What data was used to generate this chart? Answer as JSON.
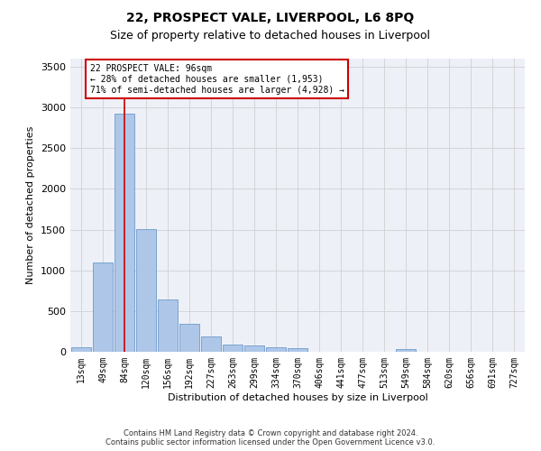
{
  "title": "22, PROSPECT VALE, LIVERPOOL, L6 8PQ",
  "subtitle": "Size of property relative to detached houses in Liverpool",
  "xlabel": "Distribution of detached houses by size in Liverpool",
  "ylabel": "Number of detached properties",
  "footer_line1": "Contains HM Land Registry data © Crown copyright and database right 2024.",
  "footer_line2": "Contains public sector information licensed under the Open Government Licence v3.0.",
  "categories": [
    "13sqm",
    "49sqm",
    "84sqm",
    "120sqm",
    "156sqm",
    "192sqm",
    "227sqm",
    "263sqm",
    "299sqm",
    "334sqm",
    "370sqm",
    "406sqm",
    "441sqm",
    "477sqm",
    "513sqm",
    "549sqm",
    "584sqm",
    "620sqm",
    "656sqm",
    "691sqm",
    "727sqm"
  ],
  "bar_values": [
    50,
    1100,
    2920,
    1510,
    640,
    345,
    190,
    90,
    80,
    55,
    40,
    0,
    0,
    0,
    0,
    30,
    0,
    0,
    0,
    0,
    0
  ],
  "bar_color": "#aec6e8",
  "bar_edge_color": "#5a8fc0",
  "ylim": [
    0,
    3600
  ],
  "yticks": [
    0,
    500,
    1000,
    1500,
    2000,
    2500,
    3000,
    3500
  ],
  "vline_x_index": 2,
  "vline_color": "#cc0000",
  "annotation_text": "22 PROSPECT VALE: 96sqm\n← 28% of detached houses are smaller (1,953)\n71% of semi-detached houses are larger (4,928) →",
  "annotation_box_color": "#cc0000",
  "grid_color": "#d0d0d0",
  "background_color": "#eef0f8",
  "title_fontsize": 10,
  "subtitle_fontsize": 9,
  "ylabel_fontsize": 8,
  "xlabel_fontsize": 8,
  "tick_fontsize": 7,
  "footer_fontsize": 6
}
